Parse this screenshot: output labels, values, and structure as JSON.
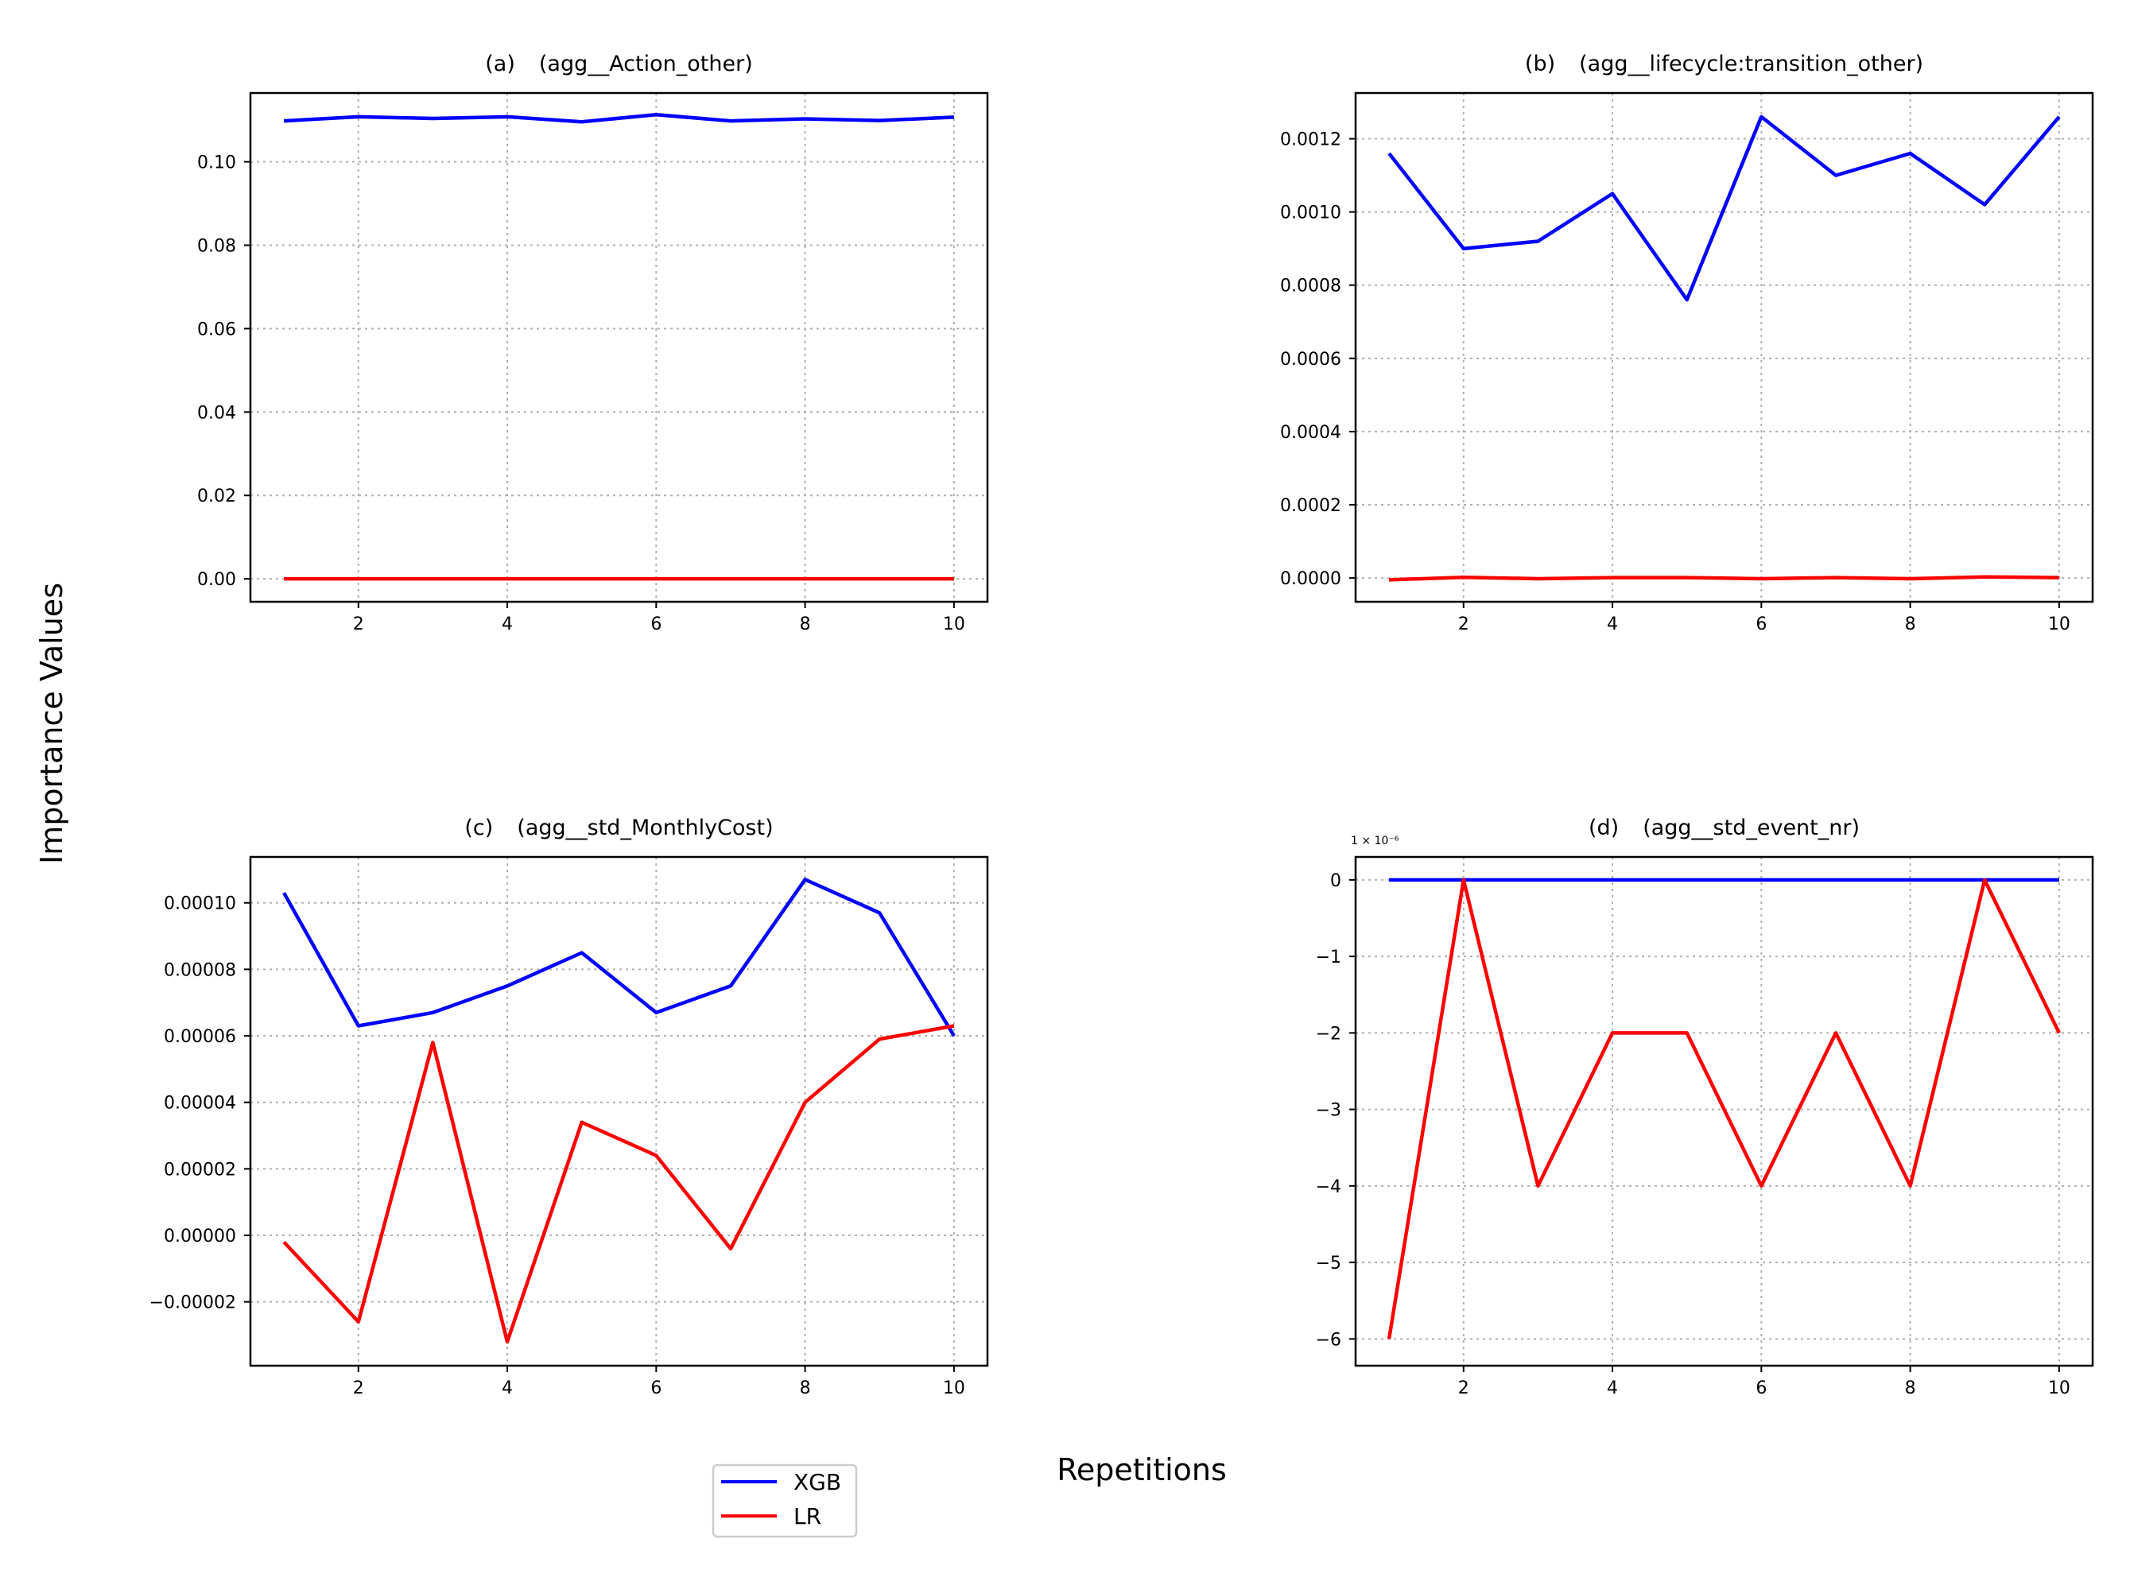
{
  "figure": {
    "ylabel": "Importance Values",
    "xlabel": "Repetitions"
  },
  "legend": {
    "placement": "bottom-center",
    "entries": [
      {
        "label": "XGB",
        "color": "#0000ff"
      },
      {
        "label": "LR",
        "color": "#ff0000"
      }
    ]
  },
  "chart_data": [
    {
      "type": "line",
      "panel": "(a)",
      "title": "(agg__Action_other)",
      "x": [
        1,
        2,
        3,
        4,
        5,
        6,
        7,
        8,
        9,
        10
      ],
      "xlim": [
        0.55,
        10.45
      ],
      "ylim": [
        -0.0055,
        0.1165
      ],
      "xticks": [
        2,
        4,
        6,
        8,
        10
      ],
      "xtick_labels": [
        "2",
        "4",
        "6",
        "8",
        "10"
      ],
      "yticks": [
        0,
        0.02,
        0.04,
        0.06,
        0.08,
        0.1
      ],
      "ytick_labels": [
        "0.00",
        "0.02",
        "0.04",
        "0.06",
        "0.08",
        "0.10"
      ],
      "grid": true,
      "series": [
        {
          "name": "XGB",
          "color": "#0000ff",
          "values": [
            0.1098,
            0.1108,
            0.1104,
            0.1108,
            0.1096,
            0.1113,
            0.1098,
            0.1103,
            0.1099,
            0.1107
          ]
        },
        {
          "name": "LR",
          "color": "#ff0000",
          "values": [
            0,
            0,
            0,
            0,
            0,
            0,
            0,
            0,
            0,
            0
          ]
        }
      ]
    },
    {
      "type": "line",
      "panel": "(b)",
      "title": "(agg__lifecycle:transition_other)",
      "x": [
        1,
        2,
        3,
        4,
        5,
        6,
        7,
        8,
        9,
        10
      ],
      "xlim": [
        0.55,
        10.45
      ],
      "ylim": [
        -6.5e-05,
        0.001325
      ],
      "xticks": [
        2,
        4,
        6,
        8,
        10
      ],
      "xtick_labels": [
        "2",
        "4",
        "6",
        "8",
        "10"
      ],
      "yticks": [
        0,
        0.0002,
        0.0004,
        0.0006,
        0.0008,
        0.001,
        0.0012
      ],
      "ytick_labels": [
        "0.0000",
        "0.0002",
        "0.0004",
        "0.0006",
        "0.0008",
        "0.0010",
        "0.0012"
      ],
      "grid": true,
      "series": [
        {
          "name": "XGB",
          "color": "#0000ff",
          "values": [
            0.00116,
            0.0009,
            0.00092,
            0.00105,
            0.00076,
            0.00126,
            0.0011,
            0.00116,
            0.00102,
            0.00126
          ]
        },
        {
          "name": "LR",
          "color": "#ff0000",
          "values": [
            -5e-06,
            2e-06,
            -2e-06,
            1e-06,
            1e-06,
            -2e-06,
            1e-06,
            -2e-06,
            3e-06,
            1e-06
          ]
        }
      ]
    },
    {
      "type": "line",
      "panel": "(c)",
      "title": "(agg__std_MonthlyCost)",
      "x": [
        1,
        2,
        3,
        4,
        5,
        6,
        7,
        8,
        9,
        10
      ],
      "xlim": [
        0.55,
        10.45
      ],
      "ylim": [
        -3.92e-05,
        0.0001138
      ],
      "xticks": [
        2,
        4,
        6,
        8,
        10
      ],
      "xtick_labels": [
        "2",
        "4",
        "6",
        "8",
        "10"
      ],
      "yticks": [
        -2e-05,
        0,
        2e-05,
        4e-05,
        6e-05,
        8e-05,
        0.0001
      ],
      "ytick_labels": [
        "−0.00002",
        "0.00000",
        "0.00002",
        "0.00004",
        "0.00006",
        "0.00008",
        "0.00010"
      ],
      "grid": true,
      "series": [
        {
          "name": "XGB",
          "color": "#0000ff",
          "values": [
            0.000103,
            6.3e-05,
            6.7e-05,
            7.5e-05,
            8.5e-05,
            6.7e-05,
            7.5e-05,
            0.000107,
            9.7e-05,
            6e-05
          ]
        },
        {
          "name": "LR",
          "color": "#ff0000",
          "values": [
            -2e-06,
            -2.6e-05,
            5.8e-05,
            -3.2e-05,
            3.4e-05,
            2.4e-05,
            -4e-06,
            4e-05,
            5.9e-05,
            6.3e-05
          ]
        }
      ]
    },
    {
      "type": "line",
      "panel": "(d)",
      "title": "(agg__std_event_nr)",
      "offset_text": "1 × 10⁻⁶",
      "x": [
        1,
        2,
        3,
        4,
        5,
        6,
        7,
        8,
        9,
        10
      ],
      "xlim": [
        0.55,
        10.45
      ],
      "ylim": [
        -6.35,
        0.3
      ],
      "xticks": [
        2,
        4,
        6,
        8,
        10
      ],
      "xtick_labels": [
        "2",
        "4",
        "6",
        "8",
        "10"
      ],
      "yticks": [
        -6,
        -5,
        -4,
        -3,
        -2,
        -1,
        0
      ],
      "ytick_labels": [
        "−6",
        "−5",
        "−4",
        "−3",
        "−2",
        "−1",
        "0"
      ],
      "grid": true,
      "series": [
        {
          "name": "XGB",
          "color": "#0000ff",
          "values": [
            0,
            0,
            0,
            0,
            0,
            0,
            0,
            0,
            0,
            0
          ]
        },
        {
          "name": "LR",
          "color": "#ff0000",
          "values": [
            -6,
            0,
            -4,
            -2,
            -2,
            -4,
            -2,
            -4,
            0,
            -2
          ]
        }
      ]
    }
  ]
}
